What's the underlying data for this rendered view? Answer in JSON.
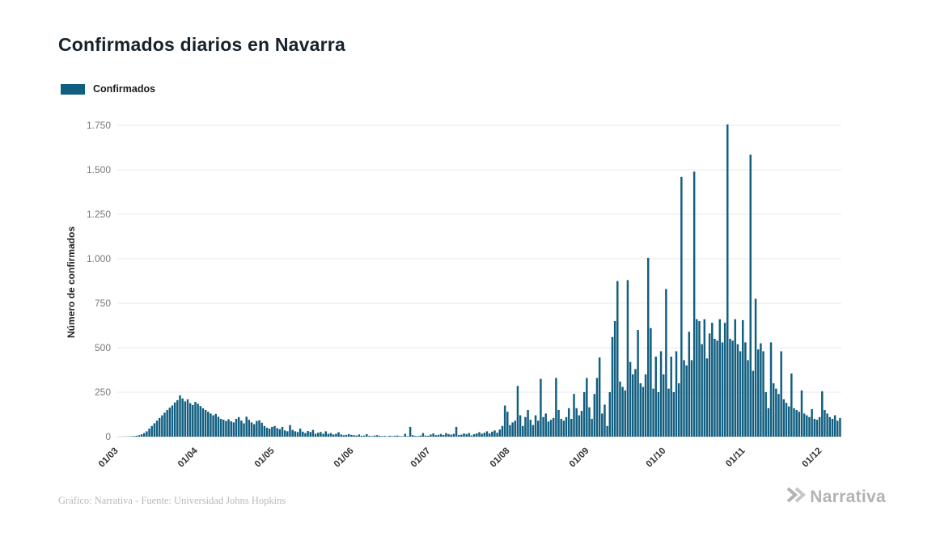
{
  "page": {
    "title": "Confirmados diarios en Navarra",
    "footer_credit": "Gráfico: Narrativa - Fuente: Universidad Johns Hopkins",
    "brand": "Narrativa"
  },
  "legend": {
    "items": [
      {
        "label": "Confirmados",
        "color": "#115e80"
      }
    ]
  },
  "chart_data": {
    "type": "bar",
    "title": "Confirmados diarios en Navarra",
    "series_name": "Confirmados",
    "xlabel": "",
    "ylabel": "Número de confirmados",
    "color": "#115e80",
    "grid": "horizontal",
    "legend_position": "top-left",
    "ylim": [
      0,
      1750
    ],
    "y_ticks": [
      0,
      250,
      500,
      750,
      1000,
      1250,
      1500,
      1750
    ],
    "y_tick_labels": [
      "0",
      "250",
      "500",
      "750",
      "1.000",
      "1.250",
      "1.500",
      "1.750"
    ],
    "x_unit": "daily bars (one bar per day, March through early December)",
    "x_ticks": [
      {
        "label": "01/03",
        "index": 0
      },
      {
        "label": "01/04",
        "index": 31
      },
      {
        "label": "01/05",
        "index": 61
      },
      {
        "label": "01/06",
        "index": 92
      },
      {
        "label": "01/07",
        "index": 122
      },
      {
        "label": "01/08",
        "index": 153
      },
      {
        "label": "01/09",
        "index": 184
      },
      {
        "label": "01/10",
        "index": 214
      },
      {
        "label": "01/11",
        "index": 245
      },
      {
        "label": "01/12",
        "index": 275
      }
    ],
    "values": [
      0,
      0,
      0,
      1,
      1,
      2,
      3,
      5,
      8,
      13,
      20,
      30,
      45,
      60,
      75,
      90,
      105,
      120,
      135,
      150,
      163,
      175,
      192,
      205,
      232,
      215,
      198,
      210,
      188,
      178,
      195,
      185,
      172,
      160,
      150,
      140,
      130,
      120,
      128,
      112,
      100,
      95,
      88,
      98,
      86,
      80,
      100,
      110,
      90,
      75,
      112,
      95,
      80,
      70,
      88,
      92,
      78,
      60,
      50,
      45,
      55,
      60,
      48,
      42,
      55,
      35,
      30,
      65,
      38,
      30,
      26,
      45,
      28,
      20,
      32,
      26,
      38,
      16,
      22,
      26,
      16,
      30,
      16,
      20,
      12,
      16,
      25,
      12,
      8,
      10,
      14,
      10,
      8,
      6,
      12,
      5,
      6,
      14,
      5,
      3,
      6,
      8,
      5,
      3,
      4,
      2,
      5,
      3,
      5,
      6,
      3,
      2,
      16,
      3,
      55,
      8,
      4,
      3,
      6,
      20,
      6,
      5,
      12,
      18,
      8,
      10,
      15,
      9,
      20,
      14,
      11,
      16,
      55,
      9,
      11,
      18,
      14,
      20,
      7,
      14,
      18,
      25,
      16,
      22,
      30,
      18,
      28,
      35,
      22,
      40,
      60,
      175,
      140,
      65,
      80,
      90,
      285,
      120,
      60,
      110,
      150,
      95,
      65,
      120,
      90,
      325,
      110,
      130,
      85,
      95,
      105,
      330,
      150,
      100,
      90,
      110,
      160,
      100,
      240,
      160,
      120,
      145,
      250,
      330,
      165,
      100,
      240,
      330,
      445,
      130,
      180,
      60,
      250,
      560,
      650,
      875,
      310,
      280,
      260,
      880,
      420,
      350,
      380,
      600,
      300,
      280,
      350,
      1005,
      610,
      270,
      450,
      250,
      480,
      350,
      830,
      270,
      450,
      250,
      480,
      300,
      1460,
      430,
      400,
      590,
      430,
      1490,
      660,
      650,
      520,
      660,
      440,
      580,
      640,
      550,
      540,
      660,
      530,
      640,
      1755,
      550,
      540,
      660,
      520,
      480,
      655,
      530,
      430,
      1585,
      370,
      775,
      490,
      525,
      480,
      250,
      160,
      530,
      300,
      270,
      240,
      480,
      210,
      190,
      170,
      355,
      160,
      150,
      140,
      260,
      130,
      120,
      110,
      155,
      100,
      95,
      110,
      255,
      150,
      130,
      110,
      100,
      120,
      90,
      105
    ]
  }
}
